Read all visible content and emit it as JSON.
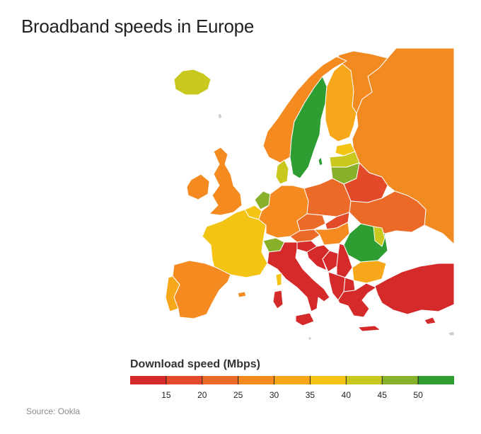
{
  "title": "Broadband speeds in Europe",
  "legend": {
    "title": "Download speed (Mbps)",
    "ticks": [
      "15",
      "20",
      "25",
      "30",
      "35",
      "40",
      "45",
      "50"
    ],
    "colors": [
      "#d42a2a",
      "#e24a2a",
      "#ec6a28",
      "#f48a20",
      "#f6a81a",
      "#f4c414",
      "#c8c81e",
      "#88b02a",
      "#2e9e32"
    ]
  },
  "source": "Source: Ookla",
  "colors": {
    "sea": "#ffffff",
    "outline": "#ffffff"
  }
}
